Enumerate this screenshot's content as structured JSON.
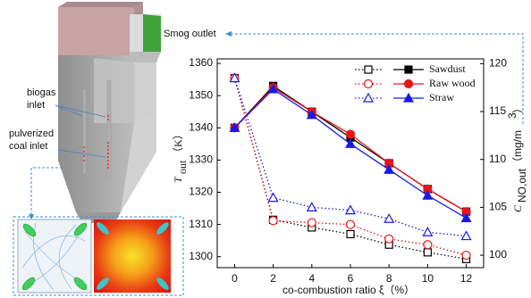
{
  "chart_data": {
    "type": "line",
    "xlabel": "co-combustion ratio ξ（%）",
    "ylabel": {
      "main": "T",
      "sub": "out",
      "unit": "（K）"
    },
    "y2label": {
      "main": "C",
      "sub": "NO,out",
      "unit": "（mg/m",
      "sup": "3",
      "end": "）"
    },
    "x": [
      0,
      2,
      4,
      6,
      8,
      10,
      12
    ],
    "xlim": [
      -0.9,
      12.9
    ],
    "xticks": [
      0,
      2,
      4,
      6,
      8,
      10,
      12
    ],
    "ylim": [
      1296.6,
      1361.4
    ],
    "yticks": [
      1300,
      1310,
      1320,
      1330,
      1340,
      1350,
      1360
    ],
    "y2lim": [
      98.7,
      120.5
    ],
    "y2ticks": [
      100,
      105,
      110,
      115,
      120
    ],
    "series": [
      {
        "name": "Sawdust",
        "color": "#000000",
        "marker": "square",
        "values": [
          1340,
          1353,
          1345,
          1337,
          1329,
          1321,
          1314
        ],
        "y2_values": [
          118.5,
          103.7,
          102.9,
          102.2,
          101.1,
          100.3,
          99.6
        ]
      },
      {
        "name": "Raw wood",
        "color": "#e8141b",
        "marker": "circle",
        "values": [
          1340,
          1352.5,
          1345,
          1338,
          1329,
          1321,
          1314
        ],
        "y2_values": [
          118.5,
          103.6,
          103.4,
          103.2,
          101.7,
          101.1,
          100
        ]
      },
      {
        "name": "Straw",
        "color": "#1a1ae6",
        "marker": "triangle",
        "values": [
          1340,
          1352,
          1344,
          1335,
          1327,
          1319,
          1312
        ],
        "y2_values": [
          118.5,
          106,
          105,
          104.7,
          103.8,
          102.4,
          102
        ]
      }
    ]
  },
  "annotations": {
    "smog_outlet": "Smog outlet",
    "biogas_inlet": [
      "biogas",
      "inlet"
    ],
    "coal_inlet": [
      "pulverized",
      "coal inlet"
    ]
  }
}
